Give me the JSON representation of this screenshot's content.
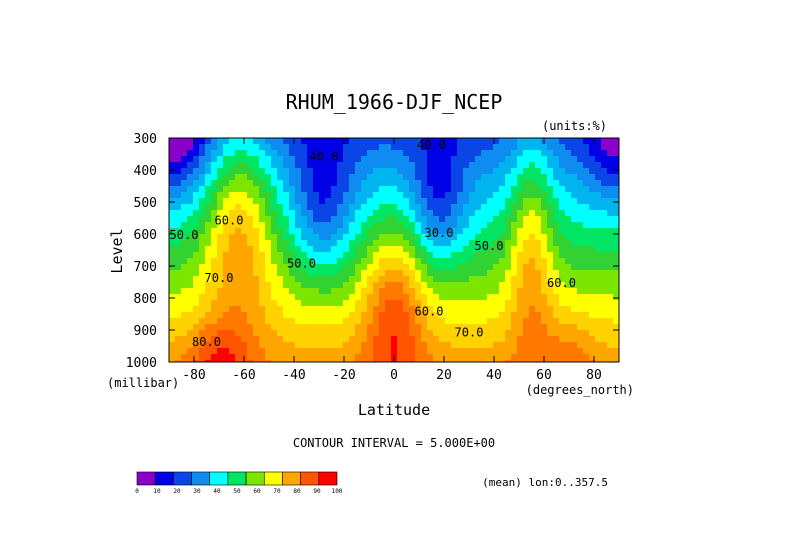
{
  "chart_data": {
    "type": "heatmap",
    "title": "RHUM_1966-DJF_NCEP",
    "units": "(units:%)",
    "xlabel": "Latitude",
    "ylabel": "Level",
    "x_unit": "(degrees_north)",
    "y_unit": "(millibar)",
    "xlim": [
      -90,
      90
    ],
    "ylim": [
      1000,
      300
    ],
    "x_ticks": [
      "-80",
      "-60",
      "-40",
      "-20",
      "0",
      "20",
      "40",
      "60",
      "80"
    ],
    "x_tick_values": [
      -80,
      -60,
      -40,
      -20,
      0,
      20,
      40,
      60,
      80
    ],
    "y_ticks": [
      "300",
      "400",
      "500",
      "600",
      "700",
      "800",
      "900",
      "1000"
    ],
    "y_tick_values": [
      300,
      400,
      500,
      600,
      700,
      800,
      900,
      1000
    ],
    "contour_interval_text": "CONTOUR INTERVAL = 5.000E+00",
    "footnote": "(mean) lon:0..357.5",
    "contour_labels": [
      {
        "text": "40.0",
        "lat": -28,
        "lev": 370
      },
      {
        "text": "40.0",
        "lat": 15,
        "lev": 335
      },
      {
        "text": "30.0",
        "lat": 18,
        "lev": 610
      },
      {
        "text": "50.0",
        "lat": -84,
        "lev": 615
      },
      {
        "text": "60.0",
        "lat": -66,
        "lev": 570
      },
      {
        "text": "50.0",
        "lat": -37,
        "lev": 705
      },
      {
        "text": "50.0",
        "lat": 38,
        "lev": 650
      },
      {
        "text": "70.0",
        "lat": -70,
        "lev": 750
      },
      {
        "text": "60.0",
        "lat": 14,
        "lev": 855
      },
      {
        "text": "70.0",
        "lat": 30,
        "lev": 920
      },
      {
        "text": "80.0",
        "lat": -75,
        "lev": 950
      },
      {
        "text": "60.0",
        "lat": 67,
        "lev": 765
      }
    ],
    "colorbar": {
      "levels": [
        "0",
        "10",
        "20",
        "30",
        "40",
        "50",
        "60",
        "70",
        "80",
        "90",
        "100"
      ],
      "colors": [
        "#8a00c8",
        "#0000e6",
        "#0a46e6",
        "#0f8cf0",
        "#00ffff",
        "#00e664",
        "#7de600",
        "#ffff00",
        "#ffa500",
        "#ff5500",
        "#ff0000"
      ]
    },
    "fill_colors": [
      "#8a00c8",
      "#0000e6",
      "#0a46e6",
      "#0f8cf0",
      "#00b4f0",
      "#00ffff",
      "#00e664",
      "#32d232",
      "#7de600",
      "#ffff00",
      "#ffd200",
      "#ffa500",
      "#ff7800",
      "#ff5500",
      "#ff0000"
    ]
  }
}
